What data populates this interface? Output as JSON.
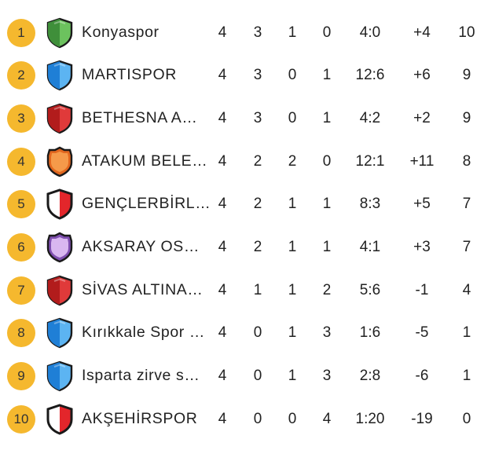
{
  "rows": [
    {
      "rank": "1",
      "team": "Konyaspor",
      "played": "4",
      "won": "3",
      "drawn": "1",
      "lost": "0",
      "goals": "4:0",
      "goal_diff": "+4",
      "points": "10",
      "crest": {
        "icon": "shield-icon",
        "colors": [
          "#3f8f3a",
          "#6cc25e"
        ],
        "style": "split"
      }
    },
    {
      "rank": "2",
      "team": "MARTISPOR",
      "played": "4",
      "won": "3",
      "drawn": "0",
      "lost": "1",
      "goals": "12:6",
      "goal_diff": "+6",
      "points": "9",
      "crest": {
        "icon": "shield-icon",
        "colors": [
          "#1f7fd6",
          "#5cb4f2"
        ],
        "style": "split"
      }
    },
    {
      "rank": "3",
      "team": "BETHESNA A…",
      "played": "4",
      "won": "3",
      "drawn": "0",
      "lost": "1",
      "goals": "4:2",
      "goal_diff": "+2",
      "points": "9",
      "crest": {
        "icon": "shield-icon",
        "colors": [
          "#b21c1c",
          "#e03a3a"
        ],
        "style": "split"
      }
    },
    {
      "rank": "4",
      "team": "ATAKUM BELE…",
      "played": "4",
      "won": "2",
      "drawn": "2",
      "lost": "0",
      "goals": "12:1",
      "goal_diff": "+11",
      "points": "8",
      "crest": {
        "icon": "badge-icon",
        "colors": [
          "#e2671f",
          "#f59a4a"
        ],
        "style": "badge"
      }
    },
    {
      "rank": "5",
      "team": "GENÇLERBİRL…",
      "played": "4",
      "won": "2",
      "drawn": "1",
      "lost": "1",
      "goals": "8:3",
      "goal_diff": "+5",
      "points": "7",
      "crest": {
        "icon": "shield-icon",
        "colors": [
          "#ffffff",
          "#e3262b"
        ],
        "style": "outlined"
      }
    },
    {
      "rank": "6",
      "team": "AKSARAY OS…",
      "played": "4",
      "won": "2",
      "drawn": "1",
      "lost": "1",
      "goals": "4:1",
      "goal_diff": "+3",
      "points": "7",
      "crest": {
        "icon": "badge-icon",
        "colors": [
          "#7f4fb0",
          "#d9b7f0"
        ],
        "style": "badge"
      }
    },
    {
      "rank": "7",
      "team": "SİVAS ALTINA…",
      "played": "4",
      "won": "1",
      "drawn": "1",
      "lost": "2",
      "goals": "5:6",
      "goal_diff": "-1",
      "points": "4",
      "crest": {
        "icon": "shield-icon",
        "colors": [
          "#b21c1c",
          "#e03a3a"
        ],
        "style": "split"
      }
    },
    {
      "rank": "8",
      "team": "Kırıkkale Spor …",
      "played": "4",
      "won": "0",
      "drawn": "1",
      "lost": "3",
      "goals": "1:6",
      "goal_diff": "-5",
      "points": "1",
      "crest": {
        "icon": "shield-icon",
        "colors": [
          "#1f7fd6",
          "#5cb4f2"
        ],
        "style": "split"
      }
    },
    {
      "rank": "9",
      "team": "Isparta zirve s…",
      "played": "4",
      "won": "0",
      "drawn": "1",
      "lost": "3",
      "goals": "2:8",
      "goal_diff": "-6",
      "points": "1",
      "crest": {
        "icon": "shield-icon",
        "colors": [
          "#1f7fd6",
          "#5cb4f2"
        ],
        "style": "split"
      }
    },
    {
      "rank": "10",
      "team": "AKŞEHİRSPOR",
      "played": "4",
      "won": "0",
      "drawn": "0",
      "lost": "4",
      "goals": "1:20",
      "goal_diff": "-19",
      "points": "0",
      "crest": {
        "icon": "shield-icon",
        "colors": [
          "#ffffff",
          "#e3262b"
        ],
        "style": "outlined"
      }
    }
  ]
}
